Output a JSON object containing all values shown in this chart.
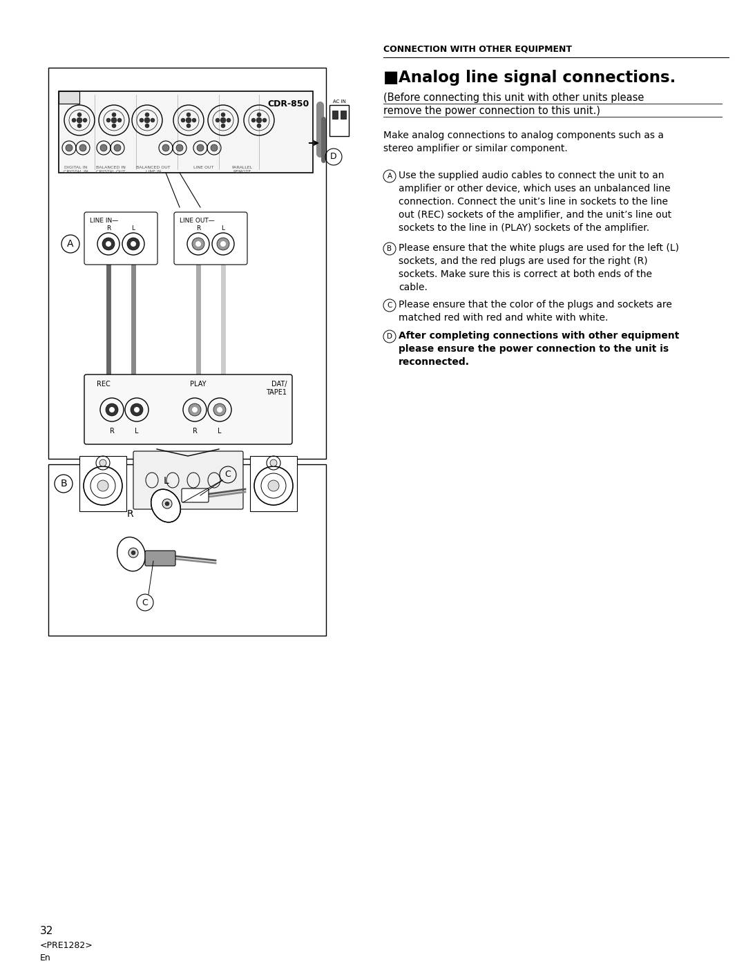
{
  "page_bg": "#ffffff",
  "section_header": "CONNECTION WITH OTHER EQUIPMENT",
  "title": "Analog line signal connections.",
  "subtitle_line1": "(Before connecting this unit with other units please",
  "subtitle_line2": "remove the power connection to this unit.)",
  "body_intro": "Make analog connections to analog components such as a\nstereo amplifier or similar component.",
  "item_A": "Use the supplied audio cables to connect the unit to an\namplifier or other device, which uses an unbalanced line\nconnection. Connect the unit’s line in sockets to the line\nout (REC) sockets of the amplifier, and the unit’s line out\nsockets to the line in (PLAY) sockets of the amplifier.",
  "item_B": "Please ensure that the white plugs are used for the left (L)\nsockets, and the red plugs are used for the right (R)\nsockets. Make sure this is correct at both ends of the\ncable.",
  "item_C": "Please ensure that the color of the plugs and sockets are\nmatched red with red and white with white.",
  "item_D": "After completing connections with other equipment\nplease ensure the power connection to the unit is\nreconnected.",
  "footer_page": "32",
  "footer_code": "<PRE1282>",
  "footer_lang": "En"
}
